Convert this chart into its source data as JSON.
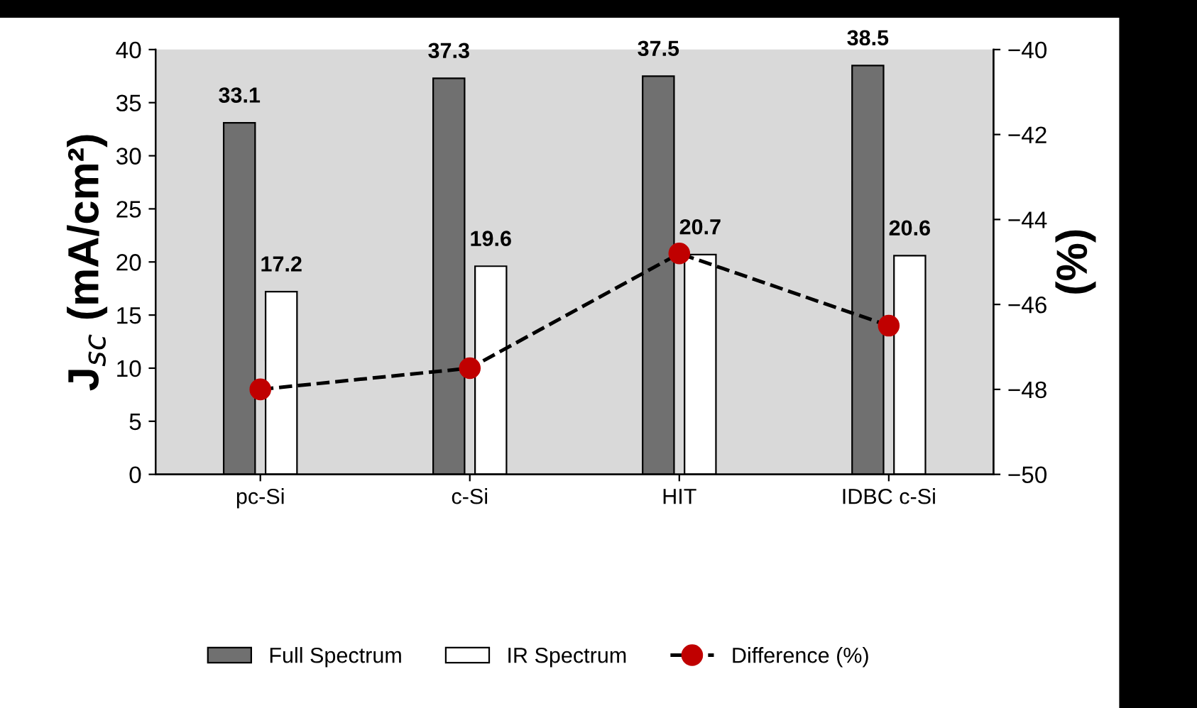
{
  "chart_data": {
    "type": "bar",
    "ylabel": "J$_{sc}$ (mA/cm²)",
    "y2label": "(%)",
    "categories": [
      "pc-Si",
      "c-Si",
      "HIT",
      "IDBC c-Si"
    ],
    "series": [
      {
        "name": "Full Spectrum",
        "color": "#707070",
        "values": [
          33.1,
          37.3,
          37.5,
          38.5
        ],
        "value_labels": [
          "33.1",
          "37.3",
          "37.5",
          "38.5"
        ]
      },
      {
        "name": "IR Spectrum",
        "color": "#ffffff",
        "values": [
          17.2,
          19.6,
          20.7,
          20.6
        ],
        "value_labels": [
          "17.2",
          "19.6",
          "20.7",
          "20.6"
        ]
      },
      {
        "name": "Difference (%)",
        "type": "line",
        "axis": "y2",
        "color": "#c00000",
        "values": [
          -48.0,
          -47.5,
          -44.8,
          -46.5
        ],
        "marker": "circle",
        "line_style": "dashed"
      }
    ],
    "ylim": [
      0,
      40
    ],
    "yticks": [
      0,
      5,
      10,
      15,
      20,
      25,
      30,
      35,
      40
    ],
    "y2lim": [
      -50,
      -40
    ],
    "y2ticks": [
      -50,
      -48,
      -46,
      -44,
      -42,
      -40
    ],
    "grid": false,
    "legend": "bottom"
  }
}
